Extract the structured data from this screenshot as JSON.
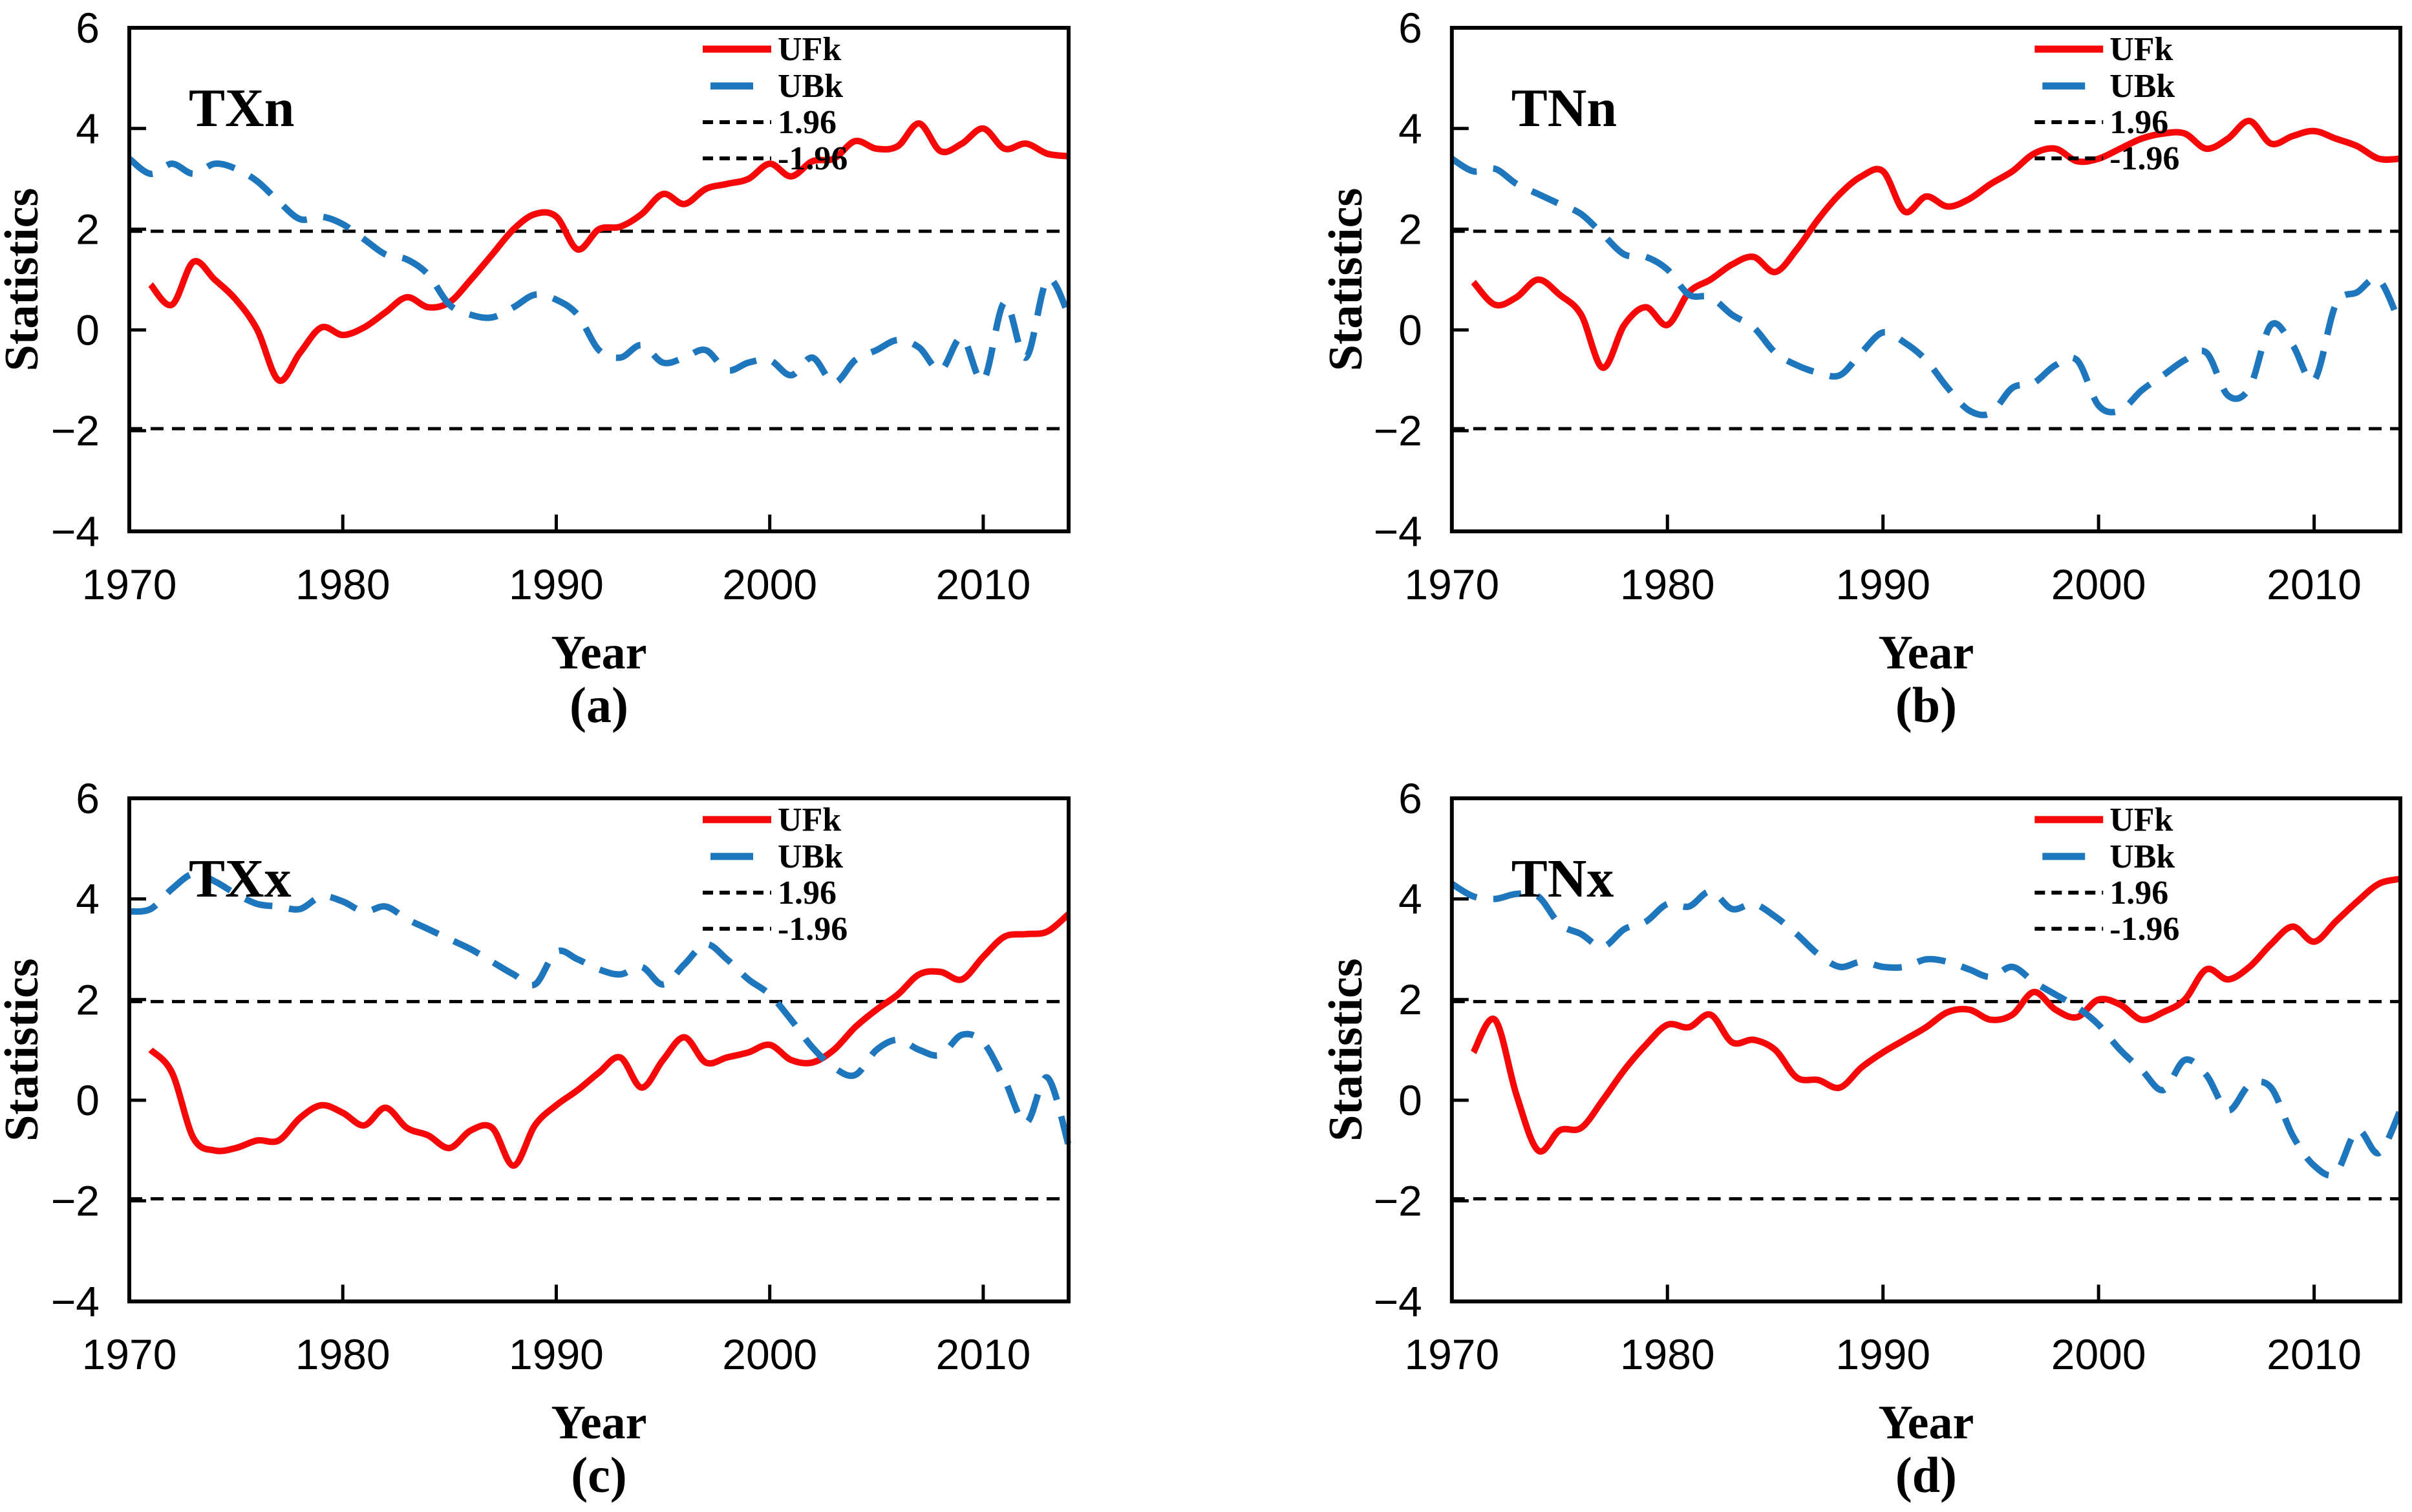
{
  "figure": {
    "background": "#ffffff",
    "panel_order": [
      "a",
      "b",
      "c",
      "d"
    ]
  },
  "colors": {
    "ufk_red": "#f70808",
    "ubk_blue": "#1e76bd",
    "threshold_black": "#000000",
    "frame_black": "#000000"
  },
  "chart_data": [
    {
      "type": "line",
      "title": "TXn",
      "panel_label": "(a)",
      "xlabel": "Year",
      "ylabel": "Statistics",
      "xlim": [
        1970,
        2014
      ],
      "ylim": [
        -4,
        6
      ],
      "xticks": [
        1970,
        1980,
        1990,
        2000,
        2010
      ],
      "xtick_labels": [
        "1970",
        "1980",
        "1990",
        "2000",
        "2010"
      ],
      "yticks": [
        -4,
        -2,
        0,
        2,
        4,
        6
      ],
      "ytick_labels": [
        "−4",
        "−2",
        "0",
        "2",
        "4",
        "6"
      ],
      "thresholds": [
        1.96,
        -1.96
      ],
      "legend": [
        "UFk",
        "UBk",
        "1.96",
        "-1.96"
      ],
      "grid": false,
      "legend_position": "top-right",
      "series": [
        {
          "name": "UFk",
          "color": "#f70808",
          "style": "solid",
          "x": [
            1971,
            1972,
            1973,
            1974,
            1975,
            1976,
            1977,
            1978,
            1979,
            1980,
            1981,
            1982,
            1983,
            1984,
            1985,
            1986,
            1987,
            1988,
            1989,
            1990,
            1991,
            1992,
            1993,
            1994,
            1995,
            1996,
            1997,
            1998,
            1999,
            2000,
            2001,
            2002,
            2003,
            2004,
            2005,
            2006,
            2007,
            2008,
            2009,
            2010,
            2011,
            2012,
            2013,
            2014
          ],
          "y": [
            0.9,
            0.5,
            1.35,
            1.0,
            0.6,
            0.0,
            -1.0,
            -0.45,
            0.05,
            -0.1,
            0.05,
            0.35,
            0.65,
            0.45,
            0.55,
            1.0,
            1.5,
            2.0,
            2.3,
            2.25,
            1.6,
            2.0,
            2.05,
            2.3,
            2.7,
            2.5,
            2.8,
            2.9,
            3.0,
            3.3,
            3.05,
            3.35,
            3.4,
            3.75,
            3.6,
            3.65,
            4.1,
            3.55,
            3.7,
            4.0,
            3.6,
            3.7,
            3.5,
            3.45
          ]
        },
        {
          "name": "UBk",
          "color": "#1e76bd",
          "style": "dashed",
          "x": [
            1970,
            1971,
            1972,
            1973,
            1974,
            1975,
            1976,
            1977,
            1978,
            1979,
            1980,
            1981,
            1982,
            1983,
            1984,
            1985,
            1986,
            1987,
            1988,
            1989,
            1990,
            1991,
            1992,
            1993,
            1994,
            1995,
            1996,
            1997,
            1998,
            1999,
            2000,
            2001,
            2002,
            2003,
            2004,
            2005,
            2006,
            2007,
            2008,
            2009,
            2010,
            2011,
            2012,
            2013,
            2014
          ],
          "y": [
            3.4,
            3.1,
            3.3,
            3.1,
            3.3,
            3.2,
            2.95,
            2.55,
            2.2,
            2.25,
            2.1,
            1.8,
            1.5,
            1.4,
            1.1,
            0.5,
            0.3,
            0.25,
            0.45,
            0.7,
            0.6,
            0.3,
            -0.4,
            -0.55,
            -0.3,
            -0.65,
            -0.55,
            -0.4,
            -0.8,
            -0.65,
            -0.6,
            -0.9,
            -0.55,
            -1.05,
            -0.6,
            -0.4,
            -0.2,
            -0.35,
            -0.8,
            -0.15,
            -1.0,
            0.55,
            -0.55,
            1.0,
            0.3
          ]
        }
      ]
    },
    {
      "type": "line",
      "title": "TNn",
      "panel_label": "(b)",
      "xlabel": "Year",
      "ylabel": "Statistics",
      "xlim": [
        1970,
        2014
      ],
      "ylim": [
        -4,
        6
      ],
      "xticks": [
        1970,
        1980,
        1990,
        2000,
        2010
      ],
      "xtick_labels": [
        "1970",
        "1980",
        "1990",
        "2000",
        "2010"
      ],
      "yticks": [
        -4,
        -2,
        0,
        2,
        4,
        6
      ],
      "ytick_labels": [
        "−4",
        "−2",
        "0",
        "2",
        "4",
        "6"
      ],
      "thresholds": [
        1.96,
        -1.96
      ],
      "legend": [
        "UFk",
        "UBk",
        "1.96",
        "-1.96"
      ],
      "grid": false,
      "legend_position": "top-right",
      "series": [
        {
          "name": "UFk",
          "color": "#f70808",
          "style": "solid",
          "x": [
            1971,
            1972,
            1973,
            1974,
            1975,
            1976,
            1977,
            1978,
            1979,
            1980,
            1981,
            1982,
            1983,
            1984,
            1985,
            1986,
            1987,
            1988,
            1989,
            1990,
            1991,
            1992,
            1993,
            1994,
            1995,
            1996,
            1997,
            1998,
            1999,
            2000,
            2001,
            2002,
            2003,
            2004,
            2005,
            2006,
            2007,
            2008,
            2009,
            2010,
            2011,
            2012,
            2013,
            2014
          ],
          "y": [
            0.95,
            0.5,
            0.65,
            1.0,
            0.7,
            0.3,
            -0.75,
            0.1,
            0.45,
            0.1,
            0.75,
            1.0,
            1.3,
            1.45,
            1.15,
            1.6,
            2.2,
            2.7,
            3.05,
            3.15,
            2.35,
            2.65,
            2.45,
            2.6,
            2.9,
            3.15,
            3.5,
            3.6,
            3.35,
            3.4,
            3.6,
            3.8,
            3.9,
            3.9,
            3.6,
            3.8,
            4.15,
            3.7,
            3.85,
            3.95,
            3.8,
            3.65,
            3.4,
            3.4
          ]
        },
        {
          "name": "UBk",
          "color": "#1e76bd",
          "style": "dashed",
          "x": [
            1970,
            1971,
            1972,
            1973,
            1974,
            1975,
            1976,
            1977,
            1978,
            1979,
            1980,
            1981,
            1982,
            1983,
            1984,
            1985,
            1986,
            1987,
            1988,
            1989,
            1990,
            1991,
            1992,
            1993,
            1994,
            1995,
            1996,
            1997,
            1998,
            1999,
            2000,
            2001,
            2002,
            2003,
            2004,
            2005,
            2006,
            2007,
            2008,
            2009,
            2010,
            2011,
            2012,
            2013,
            2014
          ],
          "y": [
            3.4,
            3.15,
            3.2,
            2.9,
            2.7,
            2.5,
            2.3,
            1.9,
            1.5,
            1.45,
            1.2,
            0.7,
            0.65,
            0.3,
            0.05,
            -0.45,
            -0.7,
            -0.85,
            -0.9,
            -0.45,
            -0.05,
            -0.25,
            -0.6,
            -1.15,
            -1.6,
            -1.65,
            -1.15,
            -1.05,
            -0.7,
            -0.6,
            -1.5,
            -1.6,
            -1.2,
            -0.9,
            -0.6,
            -0.45,
            -1.3,
            -1.15,
            0.1,
            -0.3,
            -1.0,
            0.5,
            0.75,
            1.0,
            0.1
          ]
        }
      ]
    },
    {
      "type": "line",
      "title": "TXx",
      "panel_label": "(c)",
      "xlabel": "Year",
      "ylabel": "Statistics",
      "xlim": [
        1970,
        2014
      ],
      "ylim": [
        -4,
        6
      ],
      "xticks": [
        1970,
        1980,
        1990,
        2000,
        2010
      ],
      "xtick_labels": [
        "1970",
        "1980",
        "1990",
        "2000",
        "2010"
      ],
      "yticks": [
        -4,
        -2,
        0,
        2,
        4,
        6
      ],
      "ytick_labels": [
        "−4",
        "−2",
        "0",
        "2",
        "4",
        "6"
      ],
      "thresholds": [
        1.96,
        -1.96
      ],
      "legend": [
        "UFk",
        "UBk",
        "1.96",
        "-1.96"
      ],
      "grid": false,
      "legend_position": "top-right",
      "series": [
        {
          "name": "UFk",
          "color": "#f70808",
          "style": "solid",
          "x": [
            1971,
            1972,
            1973,
            1974,
            1975,
            1976,
            1977,
            1978,
            1979,
            1980,
            1981,
            1982,
            1983,
            1984,
            1985,
            1986,
            1987,
            1988,
            1989,
            1990,
            1991,
            1992,
            1993,
            1994,
            1995,
            1996,
            1997,
            1998,
            1999,
            2000,
            2001,
            2002,
            2003,
            2004,
            2005,
            2006,
            2007,
            2008,
            2009,
            2010,
            2011,
            2012,
            2013,
            2014
          ],
          "y": [
            1.0,
            0.55,
            -0.75,
            -1.0,
            -0.95,
            -0.8,
            -0.8,
            -0.35,
            -0.1,
            -0.25,
            -0.5,
            -0.15,
            -0.55,
            -0.7,
            -0.95,
            -0.6,
            -0.55,
            -1.3,
            -0.5,
            -0.1,
            0.2,
            0.55,
            0.85,
            0.25,
            0.8,
            1.25,
            0.75,
            0.85,
            0.95,
            1.1,
            0.8,
            0.75,
            1.0,
            1.45,
            1.8,
            2.1,
            2.5,
            2.55,
            2.4,
            2.85,
            3.25,
            3.3,
            3.35,
            3.7
          ]
        },
        {
          "name": "UBk",
          "color": "#1e76bd",
          "style": "dashed",
          "x": [
            1970,
            1971,
            1972,
            1973,
            1974,
            1975,
            1976,
            1977,
            1978,
            1979,
            1980,
            1981,
            1982,
            1983,
            1984,
            1985,
            1986,
            1987,
            1988,
            1989,
            1990,
            1991,
            1992,
            1993,
            1994,
            1995,
            1996,
            1997,
            1998,
            1999,
            2000,
            2001,
            2002,
            2003,
            2004,
            2005,
            2006,
            2007,
            2008,
            2009,
            2010,
            2011,
            2012,
            2013,
            2014
          ],
          "y": [
            3.75,
            3.8,
            4.2,
            4.5,
            4.35,
            4.1,
            3.9,
            3.85,
            3.8,
            4.05,
            3.95,
            3.75,
            3.85,
            3.6,
            3.4,
            3.2,
            3.0,
            2.75,
            2.5,
            2.3,
            2.95,
            2.8,
            2.6,
            2.5,
            2.65,
            2.3,
            2.7,
            3.1,
            2.8,
            2.4,
            2.1,
            1.6,
            1.05,
            0.65,
            0.5,
            1.0,
            1.2,
            1.0,
            0.9,
            1.3,
            1.15,
            0.4,
            -0.45,
            0.45,
            -0.9
          ]
        }
      ]
    },
    {
      "type": "line",
      "title": "TNx",
      "panel_label": "(d)",
      "xlabel": "Year",
      "ylabel": "Statistics",
      "xlim": [
        1970,
        2014
      ],
      "ylim": [
        -4,
        6
      ],
      "xticks": [
        1970,
        1980,
        1990,
        2000,
        2010
      ],
      "xtick_labels": [
        "1970",
        "1980",
        "1990",
        "2000",
        "2010"
      ],
      "yticks": [
        -4,
        -2,
        0,
        2,
        4,
        6
      ],
      "ytick_labels": [
        "−4",
        "−2",
        "0",
        "2",
        "4",
        "6"
      ],
      "thresholds": [
        1.96,
        -1.96
      ],
      "legend": [
        "UFk",
        "UBk",
        "1.96",
        "-1.96"
      ],
      "grid": false,
      "legend_position": "top-right",
      "series": [
        {
          "name": "UFk",
          "color": "#f70808",
          "style": "solid",
          "x": [
            1971,
            1972,
            1973,
            1974,
            1975,
            1976,
            1977,
            1978,
            1979,
            1980,
            1981,
            1982,
            1983,
            1984,
            1985,
            1986,
            1987,
            1988,
            1989,
            1990,
            1991,
            1992,
            1993,
            1994,
            1995,
            1996,
            1997,
            1998,
            1999,
            2000,
            2001,
            2002,
            2003,
            2004,
            2005,
            2006,
            2007,
            2008,
            2009,
            2010,
            2011,
            2012,
            2013,
            2014
          ],
          "y": [
            0.95,
            1.6,
            0.1,
            -1.0,
            -0.6,
            -0.55,
            0.0,
            0.6,
            1.1,
            1.5,
            1.45,
            1.7,
            1.15,
            1.2,
            1.0,
            0.45,
            0.4,
            0.25,
            0.65,
            0.95,
            1.2,
            1.45,
            1.75,
            1.8,
            1.6,
            1.7,
            2.15,
            1.8,
            1.65,
            2.0,
            1.9,
            1.6,
            1.75,
            2.0,
            2.6,
            2.4,
            2.65,
            3.1,
            3.45,
            3.15,
            3.55,
            3.95,
            4.3,
            4.4
          ]
        },
        {
          "name": "UBk",
          "color": "#1e76bd",
          "style": "dashed",
          "x": [
            1970,
            1971,
            1972,
            1973,
            1974,
            1975,
            1976,
            1977,
            1978,
            1979,
            1980,
            1981,
            1982,
            1983,
            1984,
            1985,
            1986,
            1987,
            1988,
            1989,
            1990,
            1991,
            1992,
            1993,
            1994,
            1995,
            1996,
            1997,
            1998,
            1999,
            2000,
            2001,
            2002,
            2003,
            2004,
            2005,
            2006,
            2007,
            2008,
            2009,
            2010,
            2011,
            2012,
            2013,
            2014
          ],
          "y": [
            4.3,
            4.05,
            4.0,
            4.1,
            4.05,
            3.5,
            3.3,
            3.05,
            3.4,
            3.55,
            3.9,
            3.85,
            4.15,
            3.8,
            3.9,
            3.65,
            3.3,
            2.9,
            2.65,
            2.75,
            2.65,
            2.65,
            2.8,
            2.75,
            2.6,
            2.45,
            2.65,
            2.35,
            2.1,
            1.85,
            1.5,
            1.0,
            0.6,
            0.2,
            0.8,
            0.5,
            -0.2,
            0.3,
            0.25,
            -0.7,
            -1.3,
            -1.45,
            -0.6,
            -1.05,
            -0.2
          ]
        }
      ]
    }
  ]
}
